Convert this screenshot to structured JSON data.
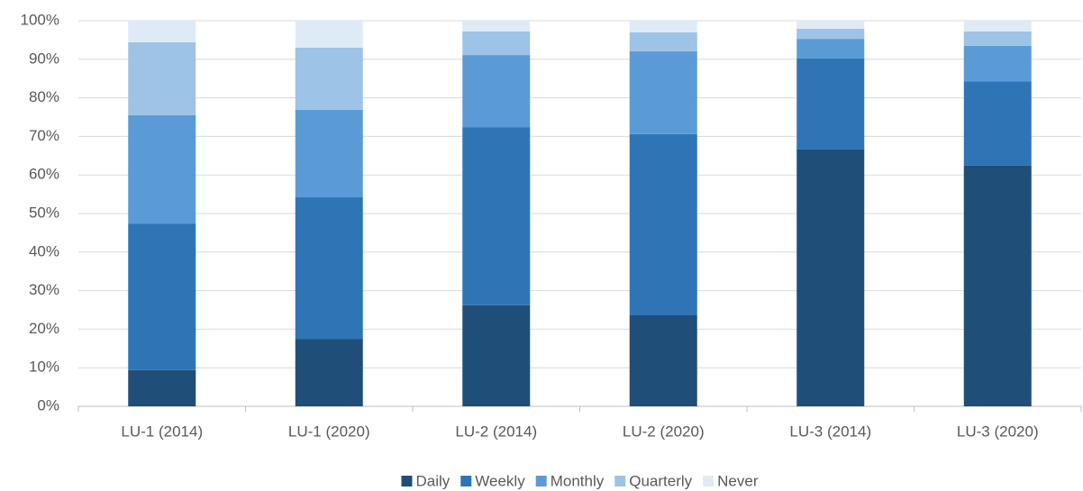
{
  "chart_data": {
    "type": "stacked_bar",
    "categories": [
      "LU-1 (2014)",
      "LU-1 (2020)",
      "LU-2 (2014)",
      "LU-2 (2020)",
      "LU-3 (2014)",
      "LU-3 (2020)"
    ],
    "series": [
      {
        "name": "Daily",
        "color": "#1f4e79",
        "values": [
          9.4,
          17.5,
          26.2,
          23.6,
          66.6,
          62.4
        ]
      },
      {
        "name": "Weekly",
        "color": "#2e75b6",
        "values": [
          38.0,
          36.7,
          46.2,
          47.0,
          23.6,
          21.9
        ]
      },
      {
        "name": "Monthly",
        "color": "#5b9bd5",
        "values": [
          28.1,
          22.7,
          18.7,
          21.5,
          5.1,
          9.2
        ]
      },
      {
        "name": "Quarterly",
        "color": "#9dc3e6",
        "values": [
          18.9,
          16.1,
          6.1,
          4.9,
          2.6,
          3.7
        ]
      },
      {
        "name": "Never",
        "color": "#deebf7",
        "values": [
          5.6,
          7.0,
          2.8,
          3.0,
          2.1,
          2.8
        ]
      }
    ],
    "ylim": [
      0,
      100
    ],
    "yticks": [
      {
        "value": 0,
        "label": "0%"
      },
      {
        "value": 10,
        "label": "10%"
      },
      {
        "value": 20,
        "label": "20%"
      },
      {
        "value": 30,
        "label": "30%"
      },
      {
        "value": 40,
        "label": "40%"
      },
      {
        "value": 50,
        "label": "50%"
      },
      {
        "value": 60,
        "label": "60%"
      },
      {
        "value": 70,
        "label": "70%"
      },
      {
        "value": 80,
        "label": "80%"
      },
      {
        "value": 90,
        "label": "90%"
      },
      {
        "value": 100,
        "label": "100%"
      }
    ],
    "grid": true,
    "legend": "bottom"
  }
}
